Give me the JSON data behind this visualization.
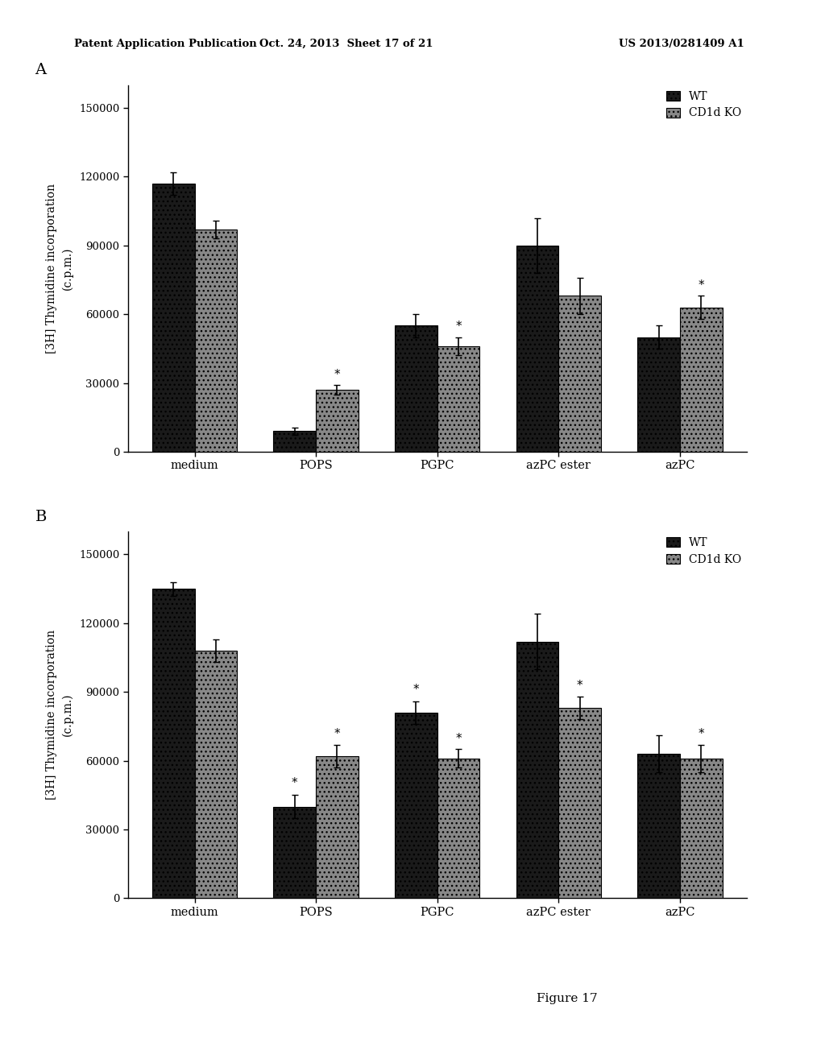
{
  "panel_A": {
    "categories": [
      "medium",
      "POPS",
      "PGPC",
      "azPC ester",
      "azPC"
    ],
    "wt_values": [
      117000,
      9000,
      55000,
      90000,
      50000
    ],
    "ko_values": [
      97000,
      27000,
      46000,
      68000,
      63000
    ],
    "wt_errors": [
      5000,
      1500,
      5000,
      12000,
      5000
    ],
    "ko_errors": [
      4000,
      2000,
      4000,
      8000,
      5000
    ],
    "star_wt": [
      false,
      false,
      false,
      false,
      false
    ],
    "star_ko": [
      false,
      true,
      true,
      false,
      true
    ],
    "ylabel": "[3H] Thymidine incorporation\n(c.p.m.)",
    "ylim": [
      0,
      160000
    ],
    "yticks": [
      0,
      30000,
      60000,
      90000,
      120000,
      150000
    ],
    "panel_label": "A"
  },
  "panel_B": {
    "categories": [
      "medium",
      "POPS",
      "PGPC",
      "azPC ester",
      "azPC"
    ],
    "wt_values": [
      135000,
      40000,
      81000,
      112000,
      63000
    ],
    "ko_values": [
      108000,
      62000,
      61000,
      83000,
      61000
    ],
    "wt_errors": [
      3000,
      5000,
      5000,
      12000,
      8000
    ],
    "ko_errors": [
      5000,
      5000,
      4000,
      5000,
      6000
    ],
    "star_wt": [
      false,
      true,
      true,
      false,
      false
    ],
    "star_ko": [
      false,
      true,
      true,
      true,
      true
    ],
    "ylabel": "[3H] Thymidine incorporation\n(c.p.m.)",
    "ylim": [
      0,
      160000
    ],
    "yticks": [
      0,
      30000,
      60000,
      90000,
      120000,
      150000
    ],
    "panel_label": "B"
  },
  "wt_color": "#1a1a1a",
  "ko_color": "#888888",
  "bar_width": 0.35,
  "legend_wt": "WT",
  "legend_ko": "CD1d KO",
  "header_left": "Patent Application Publication",
  "header_mid": "Oct. 24, 2013  Sheet 17 of 21",
  "header_right": "US 2013/0281409 A1",
  "figure_label": "Figure 17",
  "bg_color": "#ffffff"
}
